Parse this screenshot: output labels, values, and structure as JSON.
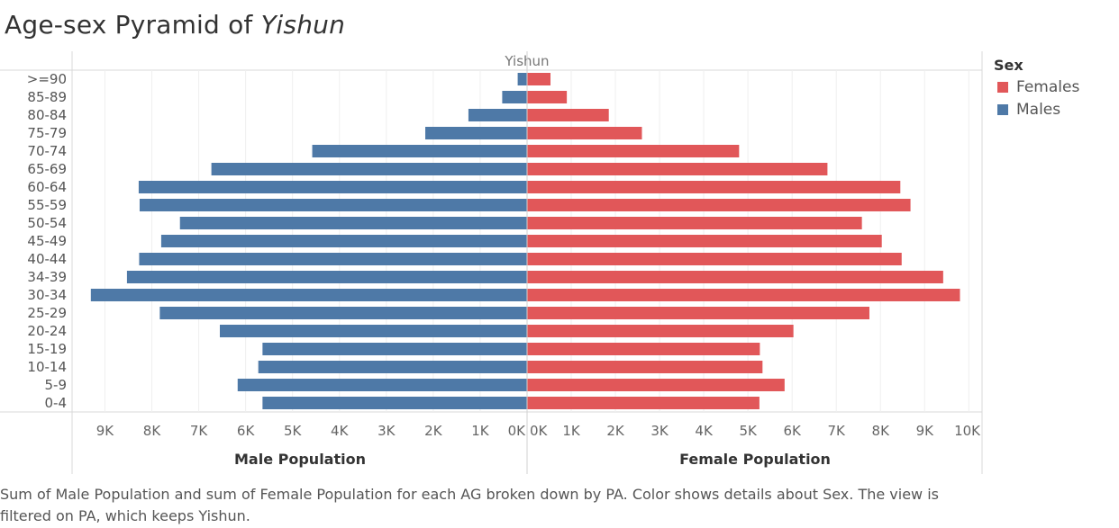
{
  "title": {
    "prefix": "Age-sex Pyramid of",
    "place": "Yishun"
  },
  "legend": {
    "title": "Sex",
    "items": [
      {
        "label": "Females",
        "color": "#E15759"
      },
      {
        "label": "Males",
        "color": "#4E79A7"
      }
    ]
  },
  "footer": "Sum of Male Population and sum of Female Population for each AG broken down by PA.  Color shows details about Sex. The view is filtered on PA, which keeps Yishun.",
  "chart_data": {
    "type": "bar",
    "orientation": "horizontal",
    "panel_header": "Yishun",
    "categories": [
      ">=90",
      "85-89",
      "80-84",
      "75-79",
      "70-74",
      "65-69",
      "60-64",
      "55-59",
      "50-54",
      "45-49",
      "40-44",
      "34-39",
      "30-34",
      "25-29",
      "20-24",
      "15-19",
      "10-14",
      "5-9",
      "0-4"
    ],
    "series": [
      {
        "name": "Males",
        "color": "#4E79A7",
        "xlabel": "Male Population",
        "xlim": [
          0,
          9700
        ],
        "ticks": [
          0,
          1000,
          2000,
          3000,
          4000,
          5000,
          6000,
          7000,
          8000,
          9000
        ],
        "tick_labels": [
          "0K",
          "1K",
          "2K",
          "3K",
          "4K",
          "5K",
          "6K",
          "7K",
          "8K",
          "9K"
        ],
        "reversed": true,
        "values": [
          200,
          530,
          1250,
          2170,
          4580,
          6730,
          8280,
          8260,
          7400,
          7800,
          8270,
          8530,
          9300,
          7830,
          6550,
          5640,
          5730,
          6170,
          5640
        ]
      },
      {
        "name": "Females",
        "color": "#E15759",
        "xlabel": "Female Population",
        "xlim": [
          0,
          10300
        ],
        "ticks": [
          0,
          1000,
          2000,
          3000,
          4000,
          5000,
          6000,
          7000,
          8000,
          9000,
          10000
        ],
        "tick_labels": [
          "0K",
          "1K",
          "2K",
          "3K",
          "4K",
          "5K",
          "6K",
          "7K",
          "8K",
          "9K",
          "10K"
        ],
        "reversed": false,
        "values": [
          530,
          900,
          1850,
          2600,
          4800,
          6800,
          8450,
          8680,
          7580,
          8030,
          8480,
          9420,
          9800,
          7750,
          6030,
          5270,
          5330,
          5830,
          5260
        ]
      }
    ],
    "grid": {
      "vertical": true,
      "horizontal": false
    },
    "legend_position": "right"
  }
}
